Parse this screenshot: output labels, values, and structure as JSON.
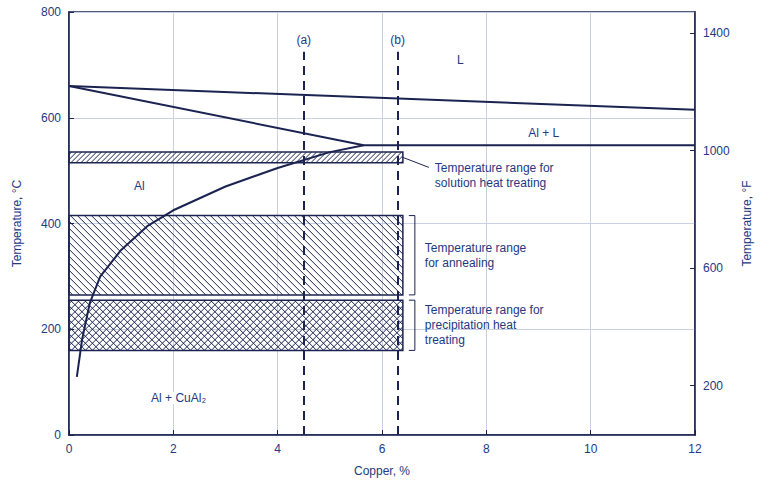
{
  "chart_data": {
    "type": "line",
    "xlabel": "Copper, %",
    "ylabel": "Temperature, °C",
    "y2label": "Temperature, °F",
    "xlim": [
      0,
      12
    ],
    "xticks": [
      0,
      2,
      4,
      6,
      8,
      10,
      12
    ],
    "ylim": [
      0,
      800
    ],
    "yticks": [
      0,
      200,
      400,
      600,
      800
    ],
    "y2lim": [
      32,
      1472
    ],
    "y2ticks": [
      200,
      600,
      1000,
      1400
    ],
    "grid": true,
    "color": "#1b2350",
    "series": [
      {
        "x": [
          0,
          12
        ],
        "values": [
          660,
          615
        ]
      },
      {
        "x": [
          0,
          5.65,
          12
        ],
        "values": [
          660,
          548,
          548
        ]
      },
      {
        "x": [
          0.15,
          0.25,
          0.4,
          0.6,
          1,
          1.5,
          2,
          3,
          4,
          5,
          5.65
        ],
        "values": [
          110,
          180,
          250,
          300,
          350,
          395,
          425,
          470,
          505,
          535,
          548
        ]
      }
    ],
    "reference_lines": [
      {
        "label": "(a)",
        "x": 4.5,
        "y": [
          0,
          725
        ]
      },
      {
        "label": "(b)",
        "x": 6.3,
        "y": [
          0,
          725
        ]
      }
    ],
    "bands": [
      {
        "label": "Temperature range for\nsolution heat treating",
        "x": [
          0,
          6.4
        ],
        "y": [
          515,
          535
        ]
      },
      {
        "label": "Temperature range\nfor annealing",
        "x": [
          0,
          6.4
        ],
        "y": [
          265,
          415
        ]
      },
      {
        "label": "Temperature range for\nprecipitation heat\ntreating",
        "x": [
          0,
          6.4
        ],
        "y": [
          160,
          255
        ]
      }
    ],
    "annotations": [
      {
        "text": "L",
        "x": 7.5,
        "y": 710
      },
      {
        "text": "Al + L",
        "x": 9.1,
        "y": 572
      },
      {
        "text": "Al",
        "x": 1.35,
        "y": 470
      },
      {
        "text": "Al + CuAl₂",
        "x": 2.1,
        "y": 70
      }
    ]
  }
}
